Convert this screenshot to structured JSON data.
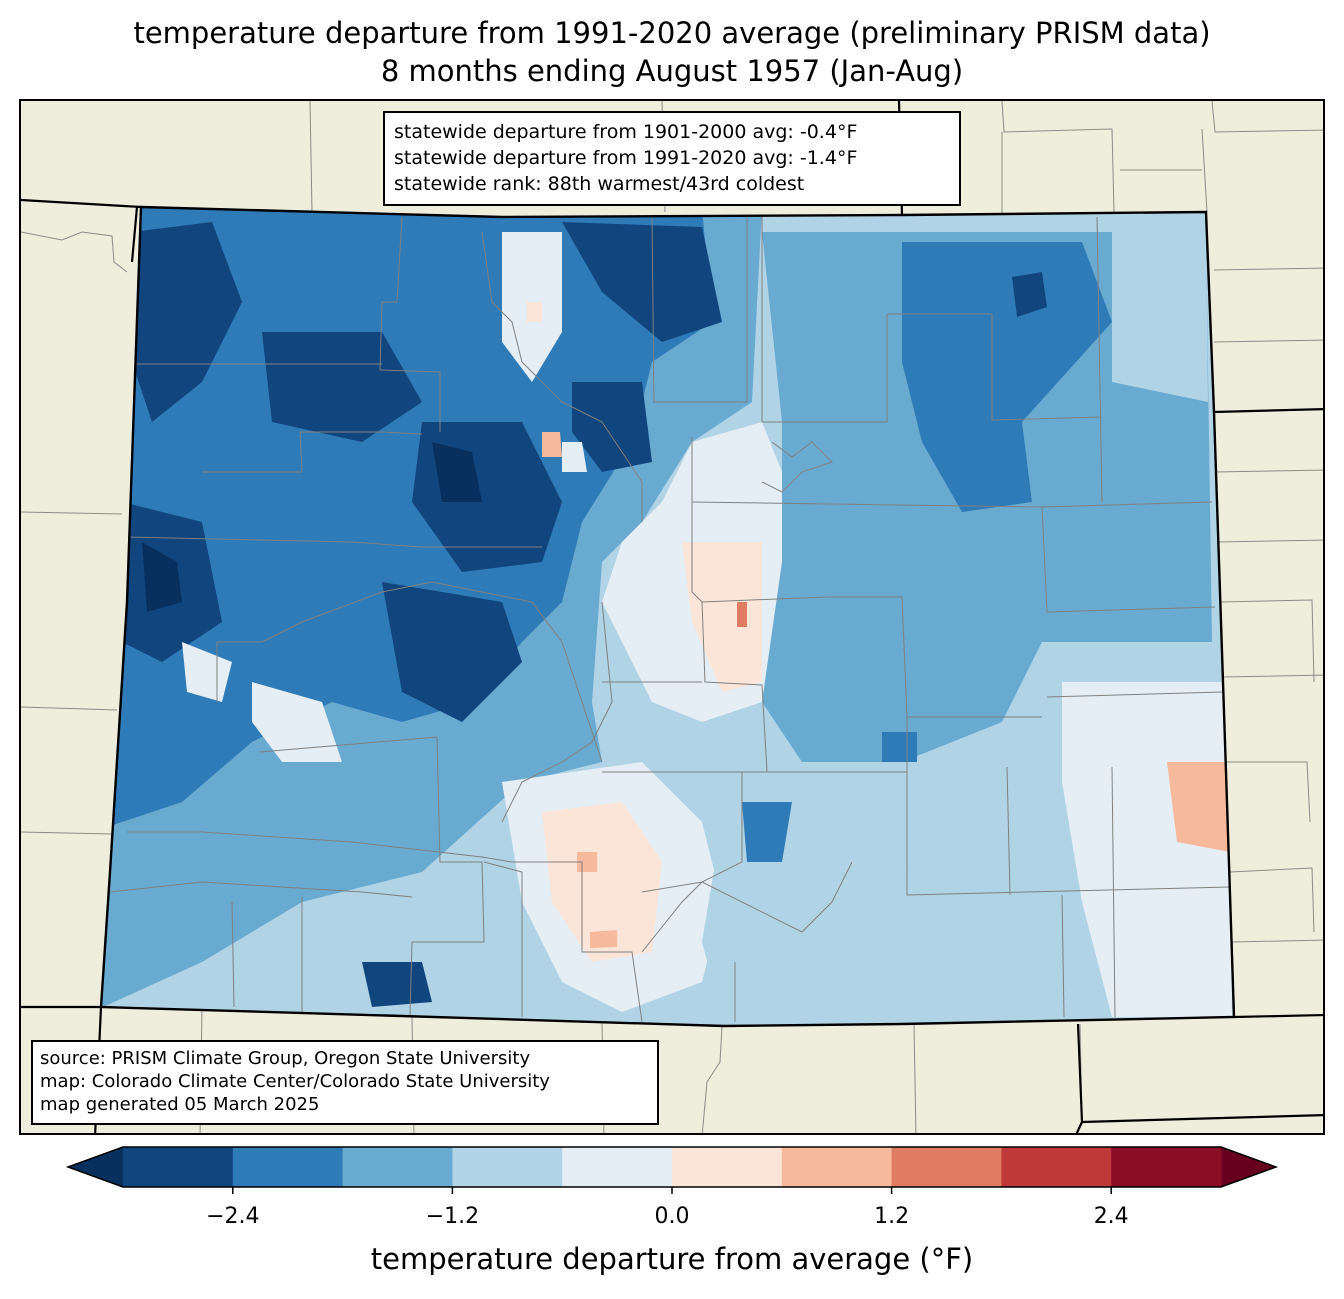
{
  "title": {
    "line1": "temperature departure from 1991-2020 average (preliminary PRISM data)",
    "line2": "8 months ending August 1957 (Jan-Aug)"
  },
  "stats": {
    "line1": "statewide departure from 1901-2000 avg: -0.4°F",
    "line2": "statewide departure from 1991-2020 avg: -1.4°F",
    "line3": "statewide rank: 88th warmest/43rd coldest"
  },
  "source": {
    "line1": "source: PRISM Climate Group, Oregon State University",
    "line2": "map: Colorado Climate Center/Colorado State University",
    "line3": "map generated 05 March 2025"
  },
  "colorbar": {
    "label": "temperature departure from average (°F)",
    "ticks": [
      "−2.4",
      "−1.2",
      "0.0",
      "1.2",
      "2.4"
    ],
    "tick_values": [
      -2.4,
      -1.2,
      0.0,
      1.2,
      2.4
    ],
    "range": [
      -3.0,
      3.0
    ],
    "step": 0.6,
    "extend": "both",
    "colors": [
      "#10457e",
      "#2f7bb8",
      "#69aad1",
      "#b0d3e6",
      "#e5eef4",
      "#fbe5d9",
      "#f7b99c",
      "#e07c62",
      "#c0393a",
      "#8b0d25"
    ],
    "under_color": "#08305f",
    "over_color": "#67001f"
  },
  "map_colors": {
    "land": "#efeedc",
    "county_lines": "#808080",
    "state_lines": "#000000"
  }
}
